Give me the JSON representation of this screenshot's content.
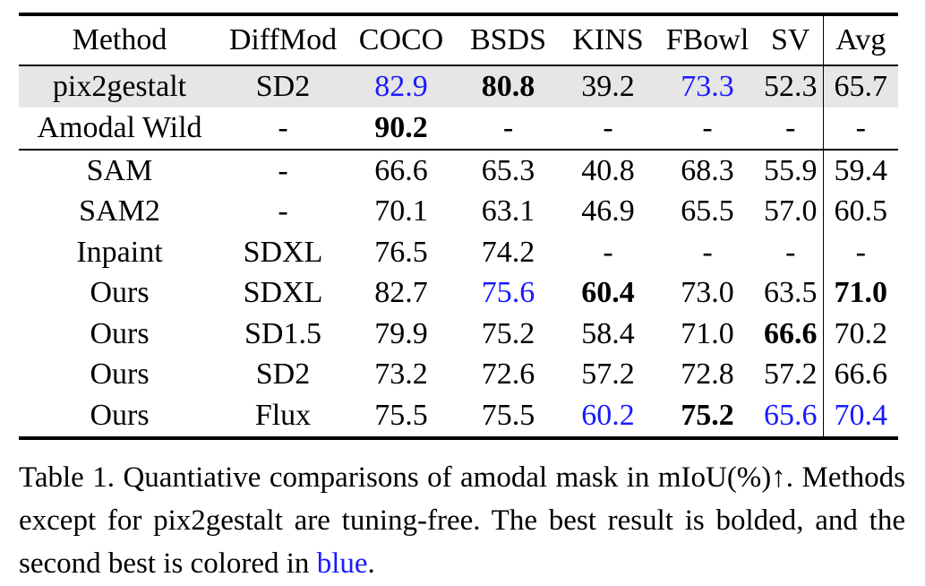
{
  "table": {
    "headers": [
      "Method",
      "DiffMod",
      "COCO",
      "BSDS",
      "KINS",
      "FBowl",
      "SV",
      "Avg"
    ],
    "group1": [
      {
        "cells": [
          "pix2gestalt",
          "SD2",
          "82.9",
          "80.8",
          "39.2",
          "73.3",
          "52.3",
          "65.7"
        ],
        "styles": [
          "",
          "",
          "second",
          "bold",
          "",
          "second",
          "",
          ""
        ],
        "shaded": true
      },
      {
        "cells": [
          "Amodal Wild",
          "-",
          "90.2",
          "-",
          "-",
          "-",
          "-",
          "-"
        ],
        "styles": [
          "",
          "",
          "bold",
          "",
          "",
          "",
          "",
          ""
        ],
        "shaded": false
      }
    ],
    "group2": [
      {
        "cells": [
          "SAM",
          "-",
          "66.6",
          "65.3",
          "40.8",
          "68.3",
          "55.9",
          "59.4"
        ],
        "styles": [
          "",
          "",
          "",
          "",
          "",
          "",
          "",
          ""
        ]
      },
      {
        "cells": [
          "SAM2",
          "-",
          "70.1",
          "63.1",
          "46.9",
          "65.5",
          "57.0",
          "60.5"
        ],
        "styles": [
          "",
          "",
          "",
          "",
          "",
          "",
          "",
          ""
        ]
      },
      {
        "cells": [
          "Inpaint",
          "SDXL",
          "76.5",
          "74.2",
          "-",
          "-",
          "-",
          "-"
        ],
        "styles": [
          "",
          "",
          "",
          "",
          "",
          "",
          "",
          ""
        ]
      },
      {
        "cells": [
          "Ours",
          "SDXL",
          "82.7",
          "75.6",
          "60.4",
          "73.0",
          "63.5",
          "71.0"
        ],
        "styles": [
          "",
          "",
          "",
          "second",
          "bold",
          "",
          "",
          "bold"
        ]
      },
      {
        "cells": [
          "Ours",
          "SD1.5",
          "79.9",
          "75.2",
          "58.4",
          "71.0",
          "66.6",
          "70.2"
        ],
        "styles": [
          "",
          "",
          "",
          "",
          "",
          "",
          "bold",
          ""
        ]
      },
      {
        "cells": [
          "Ours",
          "SD2",
          "73.2",
          "72.6",
          "57.2",
          "72.8",
          "57.2",
          "66.6"
        ],
        "styles": [
          "",
          "",
          "",
          "",
          "",
          "",
          "",
          ""
        ]
      },
      {
        "cells": [
          "Ours",
          "Flux",
          "75.5",
          "75.5",
          "60.2",
          "75.2",
          "65.6",
          "70.4"
        ],
        "styles": [
          "",
          "",
          "",
          "",
          "second",
          "bold",
          "second",
          "second"
        ]
      }
    ]
  },
  "caption": {
    "part1": "Table 1. Quantiative comparisons of amodal mask in mIoU(%)↑. Methods except for pix2gestalt are tuning-free. The best result is bolded, and the second best is colored in ",
    "blue_word": "blue",
    "part2": "."
  },
  "colors": {
    "second_best": "#1a1aff",
    "shaded_row": "#e6e6e6"
  }
}
